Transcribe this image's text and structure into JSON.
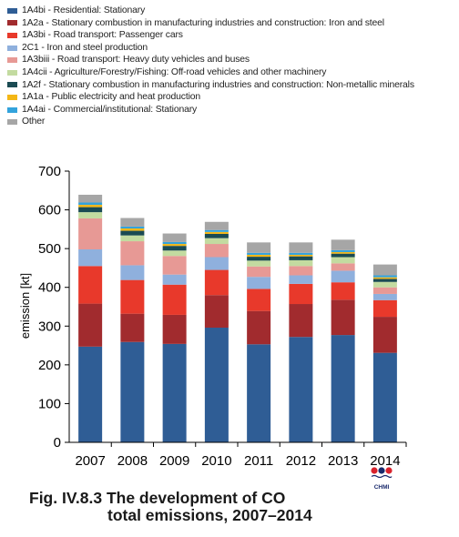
{
  "chart_data": {
    "type": "bar",
    "stacked": true,
    "categories": [
      "2007",
      "2008",
      "2009",
      "2010",
      "2011",
      "2012",
      "2013",
      "2014"
    ],
    "ylabel": "emission [kt]",
    "ylim": [
      0,
      700
    ],
    "yticks": [
      0,
      100,
      200,
      300,
      400,
      500,
      600,
      700
    ],
    "series": [
      {
        "name": "1A4bi - Residential: Stationary",
        "color": "#2f5d95",
        "values": [
          247,
          259,
          254,
          296,
          253,
          272,
          277,
          231
        ]
      },
      {
        "name": "1A2a - Stationary combustion in manufacturing industries and construction: Iron and steel",
        "color": "#a12b2e",
        "values": [
          111,
          73,
          75,
          84,
          86,
          85,
          91,
          93
        ]
      },
      {
        "name": "1A3bi - Road transport: Passenger cars",
        "color": "#e8392b",
        "values": [
          97,
          87,
          78,
          65,
          57,
          52,
          45,
          43
        ]
      },
      {
        "name": "2C1 - Iron and steel production",
        "color": "#8fb0dd",
        "values": [
          43,
          38,
          26,
          33,
          31,
          22,
          30,
          16
        ]
      },
      {
        "name": "1A3biii - Road transport: Heavy duty vehicles and buses",
        "color": "#e79995",
        "values": [
          80,
          62,
          48,
          34,
          27,
          24,
          19,
          17
        ]
      },
      {
        "name": "1A4cii - Agriculture/Forestry/Fishing: Off-road vehicles and other machinery",
        "color": "#c3dba0",
        "values": [
          16,
          15,
          14,
          15,
          15,
          15,
          16,
          14
        ]
      },
      {
        "name": "1A2f - Stationary combustion in manufacturing industries and construction: Non-metallic minerals",
        "color": "#1b4b53",
        "values": [
          13,
          12,
          12,
          11,
          10,
          10,
          9,
          8
        ]
      },
      {
        "name": "1A1a - Public electricity and heat production",
        "color": "#f4b716",
        "values": [
          6,
          6,
          5,
          5,
          5,
          4,
          4,
          4
        ]
      },
      {
        "name": "1A4ai - Commercial/institutional: Stationary",
        "color": "#33a3dc",
        "values": [
          6,
          5,
          5,
          5,
          5,
          5,
          5,
          5
        ]
      },
      {
        "name": "Other",
        "color": "#a6a6a6",
        "values": [
          20,
          22,
          22,
          21,
          27,
          27,
          27,
          28
        ]
      }
    ]
  },
  "caption": {
    "line1": "Fig. IV.8.3  The development of CO",
    "line2": "total emissions, 2007–2014"
  },
  "logo": {
    "text": "CHMI"
  }
}
